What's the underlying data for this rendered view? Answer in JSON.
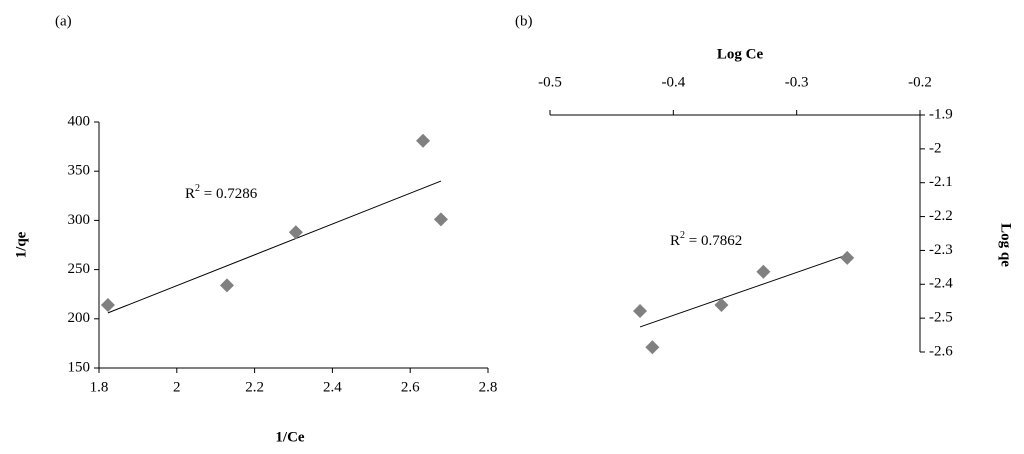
{
  "chart_data": [
    {
      "type": "scatter",
      "panel_label": "(a)",
      "xlabel": "1/Ce",
      "ylabel": "1/qe",
      "x_axis_position": "bottom",
      "y_axis_position": "left",
      "xlim": [
        1.8,
        2.8
      ],
      "xticks": [
        1.8,
        2,
        2.2,
        2.4,
        2.6,
        2.8
      ],
      "ylim": [
        150,
        400
      ],
      "yticks": [
        150,
        200,
        250,
        300,
        350,
        400
      ],
      "series": [
        {
          "color": "#808080",
          "x": [
            1.823,
            2.129,
            2.306,
            2.633,
            2.679
          ],
          "values": [
            214,
            234,
            288,
            381,
            301
          ]
        }
      ],
      "trendline": {
        "color": "#000000",
        "x": [
          1.823,
          2.679
        ],
        "values": [
          206,
          340
        ]
      },
      "annotation": {
        "base": "R",
        "sup": "2",
        "rest": " = 0.7286"
      }
    },
    {
      "type": "scatter",
      "panel_label": "(b)",
      "xlabel": "Log Ce",
      "ylabel": "Log qe",
      "x_axis_position": "top",
      "y_axis_position": "right",
      "xlim": [
        -0.5,
        -0.2
      ],
      "xticks": [
        -0.5,
        -0.4,
        -0.3,
        -0.2
      ],
      "ylim": [
        -2.6,
        -1.9
      ],
      "yticks": [
        -2.6,
        -2.5,
        -2.4,
        -2.3,
        -2.2,
        -2.1,
        -2,
        -1.9
      ],
      "series": [
        {
          "color": "#808080",
          "x": [
            -0.427,
            -0.417,
            -0.361,
            -0.327,
            -0.259
          ],
          "values": [
            -2.479,
            -2.586,
            -2.461,
            -2.363,
            -2.322
          ]
        }
      ],
      "trendline": {
        "color": "#000000",
        "x": [
          -0.427,
          -0.259
        ],
        "values": [
          -2.526,
          -2.313
        ]
      },
      "annotation": {
        "base": "R",
        "sup": "2",
        "rest": " = 0.7862"
      }
    }
  ]
}
